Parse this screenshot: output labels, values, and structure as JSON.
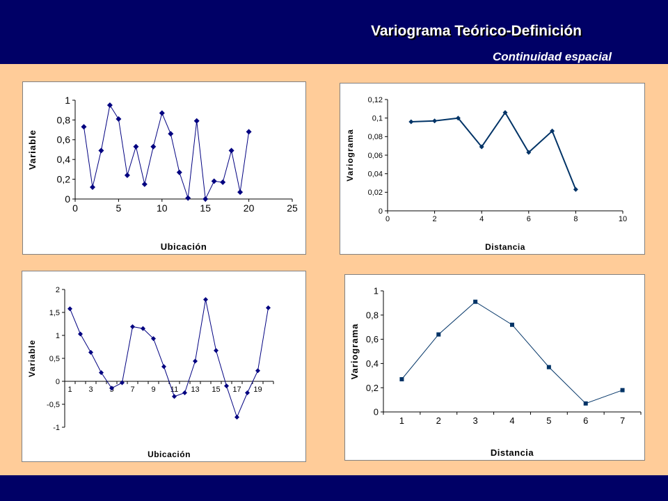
{
  "slide": {
    "title": "Variograma Teórico-Definición",
    "subtitle": "Continuidad espacial"
  },
  "colors": {
    "header_bg": "#000066",
    "slide_bg": "#FFCC99",
    "series": "#000080",
    "series2": "#003366"
  },
  "chart_data": [
    {
      "type": "line",
      "marker": "diamond",
      "title": "",
      "xlabel": "Ubicación",
      "ylabel": "Variable",
      "x": [
        1,
        2,
        3,
        4,
        5,
        6,
        7,
        8,
        9,
        10,
        11,
        12,
        13,
        14,
        15,
        16,
        17,
        18,
        19,
        20
      ],
      "y": [
        0.73,
        0.12,
        0.49,
        0.95,
        0.81,
        0.24,
        0.53,
        0.15,
        0.53,
        0.87,
        0.66,
        0.27,
        0.01,
        0.79,
        0.0,
        0.18,
        0.17,
        0.49,
        0.07,
        0.68
      ],
      "xlim": [
        0,
        25
      ],
      "ylim": [
        0,
        1
      ],
      "xticks": [
        0,
        5,
        10,
        15,
        20,
        25
      ],
      "xtick_labels": [
        "0",
        "5",
        "10",
        "15",
        "20",
        "25"
      ],
      "yticks": [
        0,
        0.2,
        0.4,
        0.6,
        0.8,
        1
      ],
      "ytick_labels": [
        "0",
        "0,2",
        "0,4",
        "0,6",
        "0,8",
        "1"
      ],
      "grid": false,
      "legend": "none"
    },
    {
      "type": "line",
      "marker": "diamond",
      "title": "",
      "xlabel": "Distancia",
      "ylabel": "Variograma",
      "x": [
        1,
        2,
        3,
        4,
        5,
        6,
        7,
        8
      ],
      "y": [
        0.096,
        0.097,
        0.1,
        0.069,
        0.106,
        0.063,
        0.086,
        0.023
      ],
      "xlim": [
        0,
        10
      ],
      "ylim": [
        0,
        0.12
      ],
      "xticks": [
        0,
        2,
        4,
        6,
        8,
        10
      ],
      "xtick_labels": [
        "0",
        "2",
        "4",
        "6",
        "8",
        "10"
      ],
      "yticks": [
        0,
        0.02,
        0.04,
        0.06,
        0.08,
        0.1,
        0.12
      ],
      "ytick_labels": [
        "0",
        "0,02",
        "0,04",
        "0,06",
        "0,08",
        "0,1",
        "0,12"
      ],
      "grid": false,
      "legend": "none"
    },
    {
      "type": "line",
      "marker": "diamond",
      "title": "",
      "xlabel": "Ubicación",
      "ylabel": "Variable",
      "categories": [
        "1",
        "2",
        "3",
        "4",
        "5",
        "6",
        "7",
        "8",
        "9",
        "10",
        "11",
        "12",
        "13",
        "14",
        "15",
        "16",
        "17",
        "18",
        "19",
        "20"
      ],
      "category_labels_shown": [
        "1",
        "3",
        "5",
        "7",
        "9",
        "11",
        "13",
        "15",
        "17",
        "19"
      ],
      "values": [
        1.58,
        1.03,
        0.63,
        0.19,
        -0.15,
        -0.03,
        1.19,
        1.15,
        0.93,
        0.32,
        -0.33,
        -0.25,
        0.44,
        1.78,
        0.67,
        -0.1,
        -0.78,
        -0.25,
        0.23,
        1.6
      ],
      "ylim": [
        -1,
        2
      ],
      "yticks": [
        -1,
        -0.5,
        0,
        0.5,
        1,
        1.5,
        2
      ],
      "ytick_labels": [
        "-1",
        "-0,5",
        "0",
        "0,5",
        "1",
        "1,5",
        "2"
      ],
      "grid": false,
      "legend": "none"
    },
    {
      "type": "line",
      "marker": "square",
      "title": "",
      "xlabel": "Distancia",
      "ylabel": "Variograma",
      "categories": [
        "1",
        "2",
        "3",
        "4",
        "5",
        "6",
        "7"
      ],
      "values": [
        0.27,
        0.64,
        0.91,
        0.72,
        0.37,
        0.07,
        0.18
      ],
      "ylim": [
        0,
        1
      ],
      "yticks": [
        0,
        0.2,
        0.4,
        0.6,
        0.8,
        1
      ],
      "ytick_labels": [
        "0",
        "0,2",
        "0,4",
        "0,6",
        "0,8",
        "1"
      ],
      "grid": false,
      "legend": "none"
    }
  ]
}
